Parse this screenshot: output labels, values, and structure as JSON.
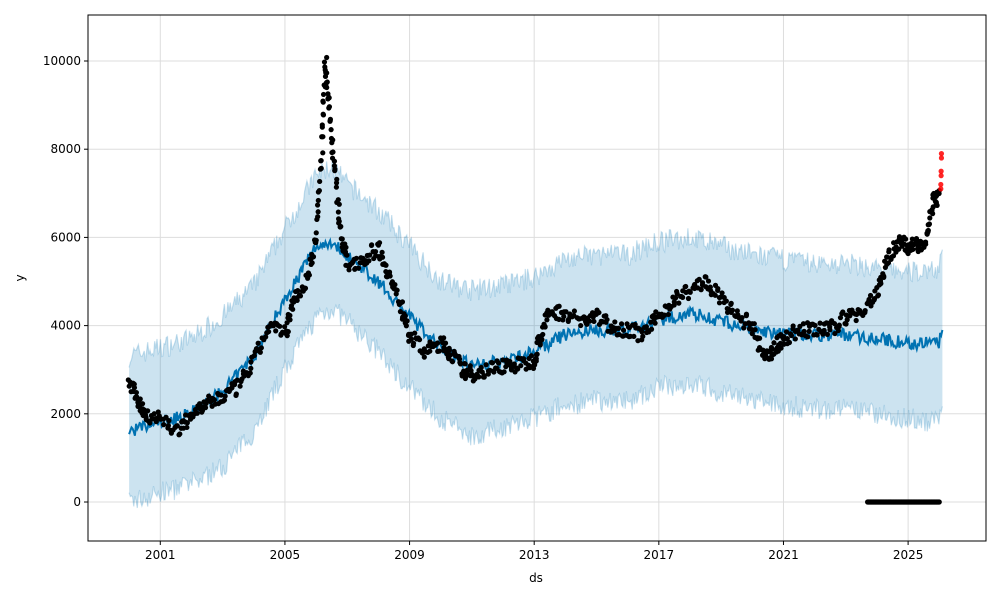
{
  "chart_data": {
    "type": "scatter",
    "title": "",
    "xlabel": "ds",
    "ylabel": "y",
    "xlim": [
      1998.68,
      2027.5
    ],
    "ylim": [
      -884,
      11043
    ],
    "grid": true,
    "x_ticks": [
      2001,
      2005,
      2009,
      2013,
      2017,
      2021,
      2025
    ],
    "x_tick_labels": [
      "2001",
      "2005",
      "2009",
      "2013",
      "2017",
      "2021",
      "2025"
    ],
    "y_ticks": [
      0,
      2000,
      4000,
      6000,
      8000,
      10000
    ],
    "y_tick_labels": [
      "0",
      "2000",
      "4000",
      "6000",
      "8000",
      "10000"
    ],
    "colors": {
      "actual": "#000000",
      "forecast": "#0072B2",
      "interval": "#0072B2",
      "outlier": "#ff0000",
      "grid": "#dddddd"
    },
    "forecast": {
      "name": "yhat",
      "x": [
        2000.0,
        2001,
        2002,
        2003,
        2004,
        2005,
        2006,
        2006.5,
        2007,
        2008,
        2009,
        2010,
        2011,
        2012,
        2013,
        2014,
        2015,
        2016,
        2017,
        2018,
        2019,
        2020,
        2021,
        2022,
        2023,
        2024,
        2025,
        2026,
        2026.1
      ],
      "yhat": [
        1600,
        1800,
        2000,
        2500,
        3300,
        4600,
        5800,
        5900,
        5600,
        5000,
        4200,
        3500,
        3100,
        3200,
        3400,
        3800,
        3900,
        3900,
        4100,
        4300,
        4100,
        3900,
        3800,
        3800,
        3800,
        3700,
        3600,
        3600,
        4000
      ],
      "upper": [
        3300,
        3500,
        3700,
        4200,
        4900,
        6200,
        7400,
        7600,
        7200,
        6600,
        5800,
        5000,
        4800,
        4900,
        5100,
        5500,
        5600,
        5600,
        5900,
        6000,
        5800,
        5600,
        5500,
        5400,
        5400,
        5300,
        5200,
        5300,
        5900
      ],
      "lower": [
        0,
        200,
        400,
        800,
        1600,
        3000,
        4200,
        4400,
        4100,
        3400,
        2600,
        1900,
        1500,
        1700,
        1900,
        2200,
        2300,
        2300,
        2600,
        2700,
        2500,
        2300,
        2200,
        2100,
        2100,
        2000,
        1900,
        1800,
        2100
      ]
    },
    "actual": {
      "name": "y",
      "x": [
        2000.0,
        2000.3,
        2000.5,
        2001,
        2001.6,
        2002,
        2002.5,
        2003,
        2003.5,
        2004,
        2004.5,
        2005,
        2005.3,
        2005.7,
        2006.0,
        2006.2,
        2006.3,
        2006.4,
        2006.6,
        2006.8,
        2007,
        2007.5,
        2008,
        2008.3,
        2008.7,
        2009,
        2009.5,
        2010,
        2010.3,
        2010.7,
        2011,
        2011.5,
        2012,
        2012.5,
        2013,
        2013.2,
        2013.5,
        2014,
        2014.5,
        2015,
        2015.5,
        2016,
        2016.5,
        2017,
        2017.5,
        2018,
        2018.5,
        2019,
        2019.5,
        2020,
        2020.4,
        2020.7,
        2021,
        2021.5,
        2022,
        2022.5,
        2023,
        2023.5,
        2024,
        2024.3,
        2024.7,
        2025,
        2025.3,
        2025.6,
        2025.8,
        2026.0
      ],
      "y": [
        2700,
        2300,
        2000,
        1900,
        1600,
        2000,
        2200,
        2400,
        2600,
        3200,
        4000,
        3800,
        4600,
        5000,
        6000,
        8000,
        10000,
        9000,
        7500,
        6000,
        5400,
        5500,
        5800,
        5200,
        4500,
        3800,
        3400,
        3600,
        3400,
        3000,
        2900,
        3000,
        3100,
        3100,
        3200,
        3800,
        4300,
        4300,
        4100,
        4200,
        4000,
        3900,
        3800,
        4200,
        4600,
        4800,
        5000,
        4600,
        4200,
        4000,
        3200,
        3500,
        3700,
        3900,
        3900,
        3900,
        4200,
        4300,
        4700,
        5500,
        5900,
        5800,
        5800,
        6000,
        6800,
        6900
      ]
    },
    "zero_cluster": {
      "x_start": 2023.7,
      "x_end": 2026.0,
      "y": 0
    },
    "outliers": {
      "x": [
        2026.05,
        2026.05,
        2026.06,
        2026.06,
        2026.07,
        2026.07
      ],
      "y": [
        7100,
        7200,
        7400,
        7500,
        7800,
        7900
      ]
    }
  }
}
